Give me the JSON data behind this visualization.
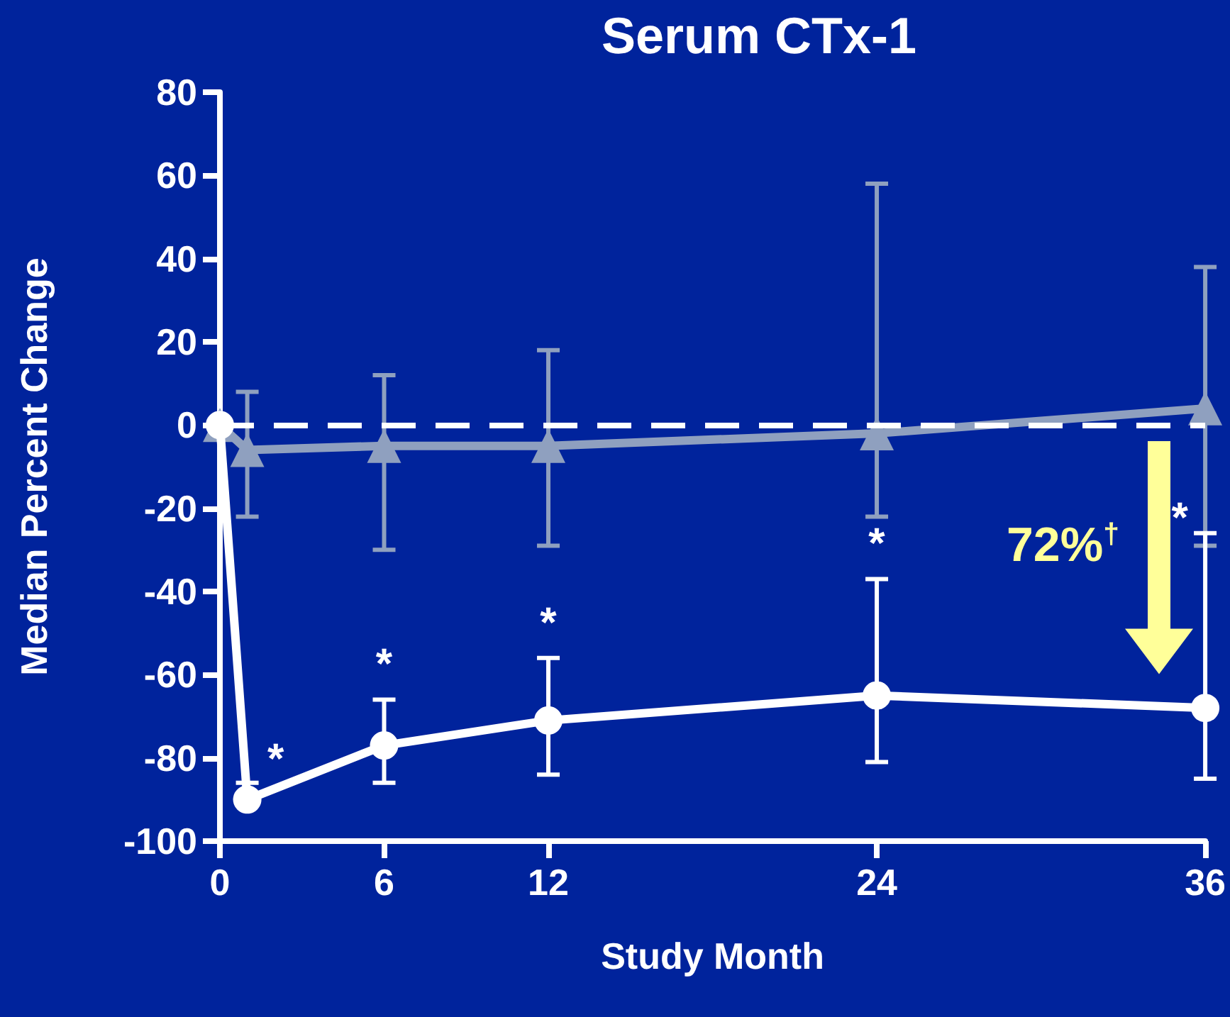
{
  "chart_data": {
    "type": "line",
    "title": "Serum CTx-1",
    "xlabel": "Study Month",
    "ylabel": "Median Percent Change",
    "xlim": [
      0,
      36
    ],
    "xticks": [
      0,
      6,
      12,
      24,
      36
    ],
    "ylim": [
      -100,
      80
    ],
    "yticks": [
      -100,
      -80,
      -60,
      -40,
      -20,
      0,
      20,
      40,
      60,
      80
    ],
    "grid": false,
    "line_style": "solid",
    "series": [
      {
        "color": "#8fa0bf",
        "marker": "triangle",
        "x": [
          0,
          1,
          6,
          12,
          24,
          36
        ],
        "values": [
          0,
          -6,
          -5,
          -5,
          -2,
          4
        ],
        "errors": [
          null,
          [
            -22,
            8
          ],
          [
            -30,
            12
          ],
          [
            -29,
            18
          ],
          [
            -22,
            58
          ],
          [
            -29,
            38
          ]
        ]
      },
      {
        "color": "#ffffff",
        "marker": "circle",
        "x": [
          0,
          1,
          6,
          12,
          24,
          36
        ],
        "values": [
          0,
          -90,
          -77,
          -71,
          -65,
          -68
        ],
        "errors": [
          null,
          [
            -90,
            -86
          ],
          [
            -86,
            -66
          ],
          [
            -84,
            -56
          ],
          [
            -81,
            -37
          ],
          [
            -85,
            -26
          ]
        ]
      }
    ],
    "ref_lines": [
      {
        "axis": "y",
        "value": 0,
        "color": "#ffffff",
        "line_style": "dashed"
      }
    ],
    "annotations": [
      "*",
      "*",
      "*",
      "*",
      "*",
      "72%$^{†}$"
    ]
  }
}
